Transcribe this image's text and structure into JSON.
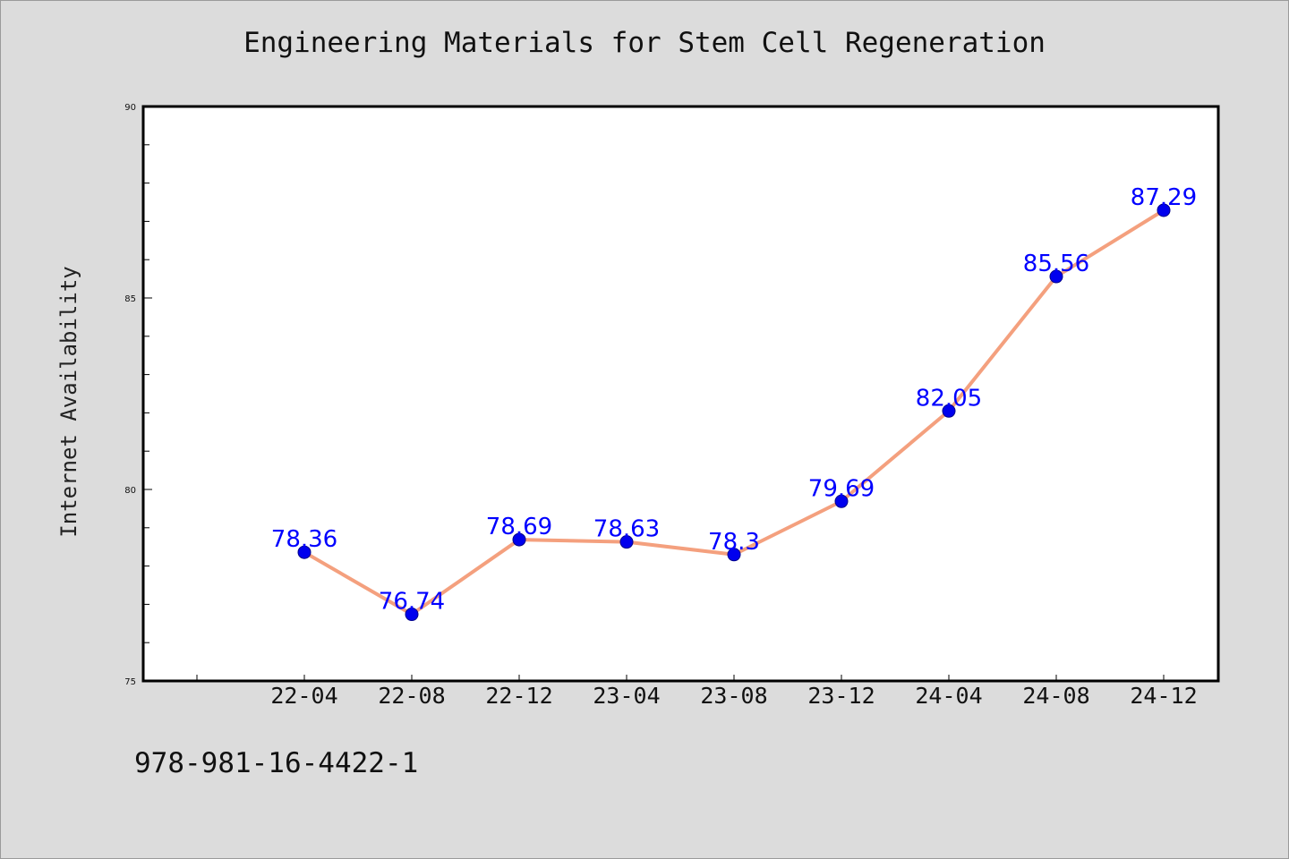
{
  "chart_data": {
    "type": "line",
    "title": "Engineering Materials for Stem Cell Regeneration",
    "xlabel": "",
    "ylabel": "Internet Availability",
    "categories": [
      "22-04",
      "22-08",
      "22-12",
      "23-04",
      "23-08",
      "23-12",
      "24-04",
      "24-08",
      "24-12"
    ],
    "series": [
      {
        "values": [
          78.36,
          76.74,
          78.69,
          78.63,
          78.3,
          79.69,
          82.05,
          85.56,
          87.29
        ]
      }
    ],
    "data_labels": [
      "78.36",
      "76.74",
      "78.69",
      "78.63",
      "78.3",
      "79.69",
      "82.05",
      "85.56",
      "87.29"
    ],
    "ylim": [
      75,
      90
    ],
    "yticks": [
      75,
      80,
      85,
      90
    ],
    "grid": false,
    "line_color": "#f4a07e",
    "marker_color": "#0000ee",
    "label_color": "#0000ff"
  },
  "footer": {
    "isbn": "978-981-16-4422-1"
  }
}
